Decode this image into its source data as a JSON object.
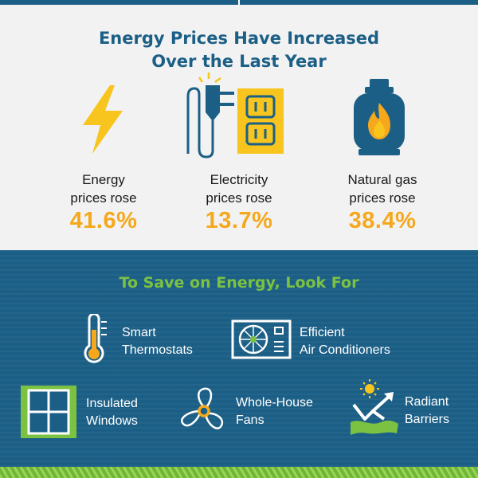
{
  "header": {
    "title_line1": "Energy Prices Have Increased",
    "title_line2": "Over the Last Year"
  },
  "stats": [
    {
      "label_line1": "Energy",
      "label_line2": "prices rose",
      "value": "41.6%",
      "icon": "lightning-bolt-icon"
    },
    {
      "label_line1": "Electricity",
      "label_line2": "prices rose",
      "value": "13.7%",
      "icon": "plug-outlet-icon"
    },
    {
      "label_line1": "Natural gas",
      "label_line2": "prices rose",
      "value": "38.4%",
      "icon": "gas-tank-icon"
    }
  ],
  "save": {
    "title": "To Save on Energy, Look For",
    "items": [
      {
        "line1": "Smart",
        "line2": "Thermostats",
        "icon": "thermometer-icon"
      },
      {
        "line1": "Efficient",
        "line2": "Air Conditioners",
        "icon": "air-conditioner-icon"
      },
      {
        "line1": "Insulated",
        "line2": "Windows",
        "icon": "window-icon"
      },
      {
        "line1": "Whole-House",
        "line2": "Fans",
        "icon": "fan-icon"
      },
      {
        "line1": "Radiant",
        "line2": "Barriers",
        "icon": "radiant-barrier-icon"
      }
    ]
  },
  "colors": {
    "navy": "#1c5f86",
    "orange": "#f5a81c",
    "yellow": "#f7c51e",
    "green": "#7cc242",
    "background": "#f2f2f2"
  }
}
